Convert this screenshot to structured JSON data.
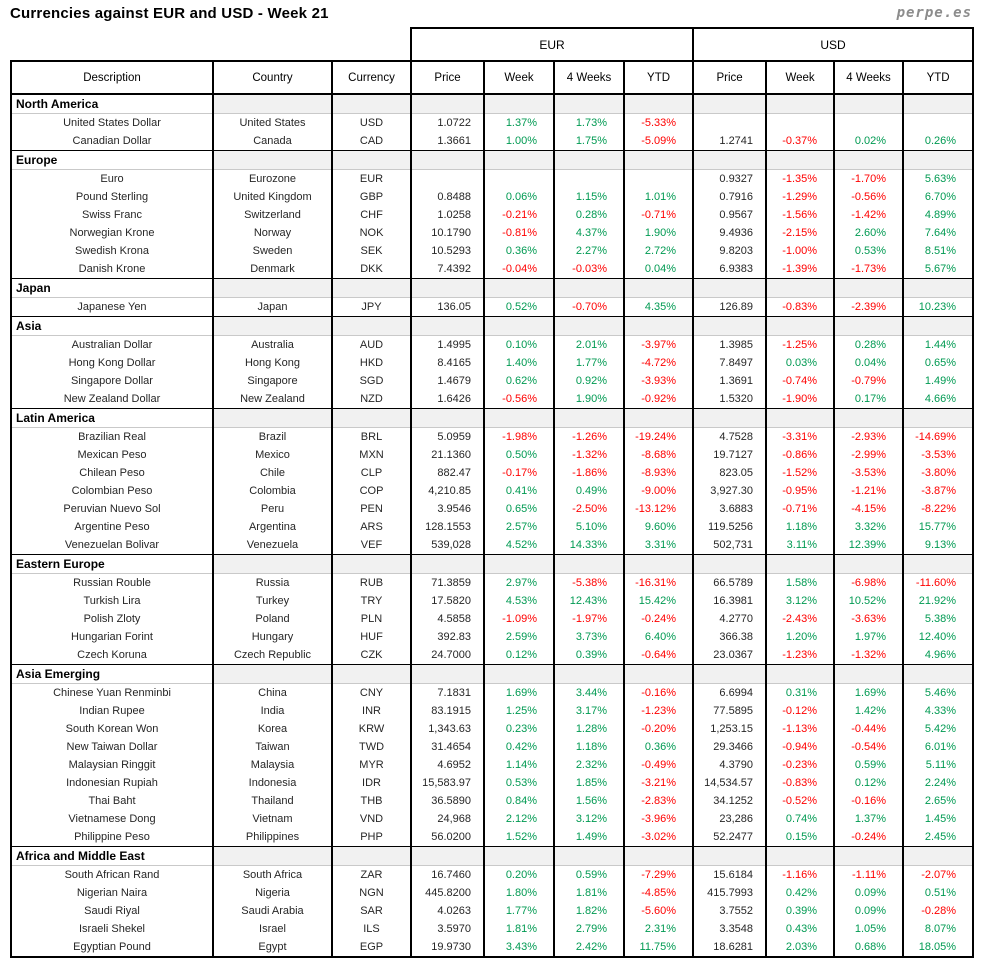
{
  "page": {
    "brand": "perpe.es"
  },
  "colors": {
    "positive": "#009a52",
    "negative": "#ff0000",
    "text": "#262626",
    "border": "#000000",
    "brand": "#8c8c8c",
    "section_fill": "#f1f1f1"
  },
  "chart_data": {
    "type": "table",
    "title": "Currencies against EUR and USD - Week 21",
    "group_headers": [
      {
        "label": "EUR",
        "span": 4
      },
      {
        "label": "USD",
        "span": 4
      }
    ],
    "columns": [
      "Description",
      "Country",
      "Currency",
      "Price",
      "Week",
      "4 Weeks",
      "YTD",
      "Price",
      "Week",
      "4 Weeks",
      "YTD"
    ],
    "sections": [
      {
        "name": "North America",
        "rows": [
          {
            "description": "United States Dollar",
            "country": "United States",
            "code": "USD",
            "eur": [
              "1.0722",
              "1.37%",
              "1.73%",
              "-5.33%"
            ],
            "usd": [
              "",
              "",
              "",
              ""
            ]
          },
          {
            "description": "Canadian Dollar",
            "country": "Canada",
            "code": "CAD",
            "eur": [
              "1.3661",
              "1.00%",
              "1.75%",
              "-5.09%"
            ],
            "usd": [
              "1.2741",
              "-0.37%",
              "0.02%",
              "0.26%"
            ]
          }
        ]
      },
      {
        "name": "Europe",
        "rows": [
          {
            "description": "Euro",
            "country": "Eurozone",
            "code": "EUR",
            "eur": [
              "",
              "",
              "",
              ""
            ],
            "usd": [
              "0.9327",
              "-1.35%",
              "-1.70%",
              "5.63%"
            ]
          },
          {
            "description": "Pound Sterling",
            "country": "United Kingdom",
            "code": "GBP",
            "eur": [
              "0.8488",
              "0.06%",
              "1.15%",
              "1.01%"
            ],
            "usd": [
              "0.7916",
              "-1.29%",
              "-0.56%",
              "6.70%"
            ]
          },
          {
            "description": "Swiss Franc",
            "country": "Switzerland",
            "code": "CHF",
            "eur": [
              "1.0258",
              "-0.21%",
              "0.28%",
              "-0.71%"
            ],
            "usd": [
              "0.9567",
              "-1.56%",
              "-1.42%",
              "4.89%"
            ]
          },
          {
            "description": "Norwegian Krone",
            "country": "Norway",
            "code": "NOK",
            "eur": [
              "10.1790",
              "-0.81%",
              "4.37%",
              "1.90%"
            ],
            "usd": [
              "9.4936",
              "-2.15%",
              "2.60%",
              "7.64%"
            ]
          },
          {
            "description": "Swedish Krona",
            "country": "Sweden",
            "code": "SEK",
            "eur": [
              "10.5293",
              "0.36%",
              "2.27%",
              "2.72%"
            ],
            "usd": [
              "9.8203",
              "-1.00%",
              "0.53%",
              "8.51%"
            ]
          },
          {
            "description": "Danish Krone",
            "country": "Denmark",
            "code": "DKK",
            "eur": [
              "7.4392",
              "-0.04%",
              "-0.03%",
              "0.04%"
            ],
            "usd": [
              "6.9383",
              "-1.39%",
              "-1.73%",
              "5.67%"
            ]
          }
        ]
      },
      {
        "name": "Japan",
        "rows": [
          {
            "description": "Japanese Yen",
            "country": "Japan",
            "code": "JPY",
            "eur": [
              "136.05",
              "0.52%",
              "-0.70%",
              "4.35%"
            ],
            "usd": [
              "126.89",
              "-0.83%",
              "-2.39%",
              "10.23%"
            ]
          }
        ]
      },
      {
        "name": "Asia",
        "rows": [
          {
            "description": "Australian Dollar",
            "country": "Australia",
            "code": "AUD",
            "eur": [
              "1.4995",
              "0.10%",
              "2.01%",
              "-3.97%"
            ],
            "usd": [
              "1.3985",
              "-1.25%",
              "0.28%",
              "1.44%"
            ]
          },
          {
            "description": "Hong Kong Dollar",
            "country": "Hong Kong",
            "code": "HKD",
            "eur": [
              "8.4165",
              "1.40%",
              "1.77%",
              "-4.72%"
            ],
            "usd": [
              "7.8497",
              "0.03%",
              "0.04%",
              "0.65%"
            ]
          },
          {
            "description": "Singapore Dollar",
            "country": "Singapore",
            "code": "SGD",
            "eur": [
              "1.4679",
              "0.62%",
              "0.92%",
              "-3.93%"
            ],
            "usd": [
              "1.3691",
              "-0.74%",
              "-0.79%",
              "1.49%"
            ]
          },
          {
            "description": "New Zealand Dollar",
            "country": "New Zealand",
            "code": "NZD",
            "eur": [
              "1.6426",
              "-0.56%",
              "1.90%",
              "-0.92%"
            ],
            "usd": [
              "1.5320",
              "-1.90%",
              "0.17%",
              "4.66%"
            ]
          }
        ]
      },
      {
        "name": "Latin America",
        "rows": [
          {
            "description": "Brazilian Real",
            "country": "Brazil",
            "code": "BRL",
            "eur": [
              "5.0959",
              "-1.98%",
              "-1.26%",
              "-19.24%"
            ],
            "usd": [
              "4.7528",
              "-3.31%",
              "-2.93%",
              "-14.69%"
            ]
          },
          {
            "description": "Mexican Peso",
            "country": "Mexico",
            "code": "MXN",
            "eur": [
              "21.1360",
              "0.50%",
              "-1.32%",
              "-8.68%"
            ],
            "usd": [
              "19.7127",
              "-0.86%",
              "-2.99%",
              "-3.53%"
            ]
          },
          {
            "description": "Chilean Peso",
            "country": "Chile",
            "code": "CLP",
            "eur": [
              "882.47",
              "-0.17%",
              "-1.86%",
              "-8.93%"
            ],
            "usd": [
              "823.05",
              "-1.52%",
              "-3.53%",
              "-3.80%"
            ]
          },
          {
            "description": "Colombian Peso",
            "country": "Colombia",
            "code": "COP",
            "eur": [
              "4,210.85",
              "0.41%",
              "0.49%",
              "-9.00%"
            ],
            "usd": [
              "3,927.30",
              "-0.95%",
              "-1.21%",
              "-3.87%"
            ]
          },
          {
            "description": "Peruvian Nuevo Sol",
            "country": "Peru",
            "code": "PEN",
            "eur": [
              "3.9546",
              "0.65%",
              "-2.50%",
              "-13.12%"
            ],
            "usd": [
              "3.6883",
              "-0.71%",
              "-4.15%",
              "-8.22%"
            ]
          },
          {
            "description": "Argentine Peso",
            "country": "Argentina",
            "code": "ARS",
            "eur": [
              "128.1553",
              "2.57%",
              "5.10%",
              "9.60%"
            ],
            "usd": [
              "119.5256",
              "1.18%",
              "3.32%",
              "15.77%"
            ]
          },
          {
            "description": "Venezuelan Bolivar",
            "country": "Venezuela",
            "code": "VEF",
            "eur": [
              "539,028",
              "4.52%",
              "14.33%",
              "3.31%"
            ],
            "usd": [
              "502,731",
              "3.11%",
              "12.39%",
              "9.13%"
            ]
          }
        ]
      },
      {
        "name": "Eastern Europe",
        "rows": [
          {
            "description": "Russian Rouble",
            "country": "Russia",
            "code": "RUB",
            "eur": [
              "71.3859",
              "2.97%",
              "-5.38%",
              "-16.31%"
            ],
            "usd": [
              "66.5789",
              "1.58%",
              "-6.98%",
              "-11.60%"
            ]
          },
          {
            "description": "Turkish Lira",
            "country": "Turkey",
            "code": "TRY",
            "eur": [
              "17.5820",
              "4.53%",
              "12.43%",
              "15.42%"
            ],
            "usd": [
              "16.3981",
              "3.12%",
              "10.52%",
              "21.92%"
            ]
          },
          {
            "description": "Polish Zloty",
            "country": "Poland",
            "code": "PLN",
            "eur": [
              "4.5858",
              "-1.09%",
              "-1.97%",
              "-0.24%"
            ],
            "usd": [
              "4.2770",
              "-2.43%",
              "-3.63%",
              "5.38%"
            ]
          },
          {
            "description": "Hungarian Forint",
            "country": "Hungary",
            "code": "HUF",
            "eur": [
              "392.83",
              "2.59%",
              "3.73%",
              "6.40%"
            ],
            "usd": [
              "366.38",
              "1.20%",
              "1.97%",
              "12.40%"
            ]
          },
          {
            "description": "Czech Koruna",
            "country": "Czech Republic",
            "code": "CZK",
            "eur": [
              "24.7000",
              "0.12%",
              "0.39%",
              "-0.64%"
            ],
            "usd": [
              "23.0367",
              "-1.23%",
              "-1.32%",
              "4.96%"
            ]
          }
        ]
      },
      {
        "name": "Asia Emerging",
        "rows": [
          {
            "description": "Chinese Yuan Renminbi",
            "country": "China",
            "code": "CNY",
            "eur": [
              "7.1831",
              "1.69%",
              "3.44%",
              "-0.16%"
            ],
            "usd": [
              "6.6994",
              "0.31%",
              "1.69%",
              "5.46%"
            ]
          },
          {
            "description": "Indian Rupee",
            "country": "India",
            "code": "INR",
            "eur": [
              "83.1915",
              "1.25%",
              "3.17%",
              "-1.23%"
            ],
            "usd": [
              "77.5895",
              "-0.12%",
              "1.42%",
              "4.33%"
            ]
          },
          {
            "description": "South Korean Won",
            "country": "Korea",
            "code": "KRW",
            "eur": [
              "1,343.63",
              "0.23%",
              "1.28%",
              "-0.20%"
            ],
            "usd": [
              "1,253.15",
              "-1.13%",
              "-0.44%",
              "5.42%"
            ]
          },
          {
            "description": "New Taiwan Dollar",
            "country": "Taiwan",
            "code": "TWD",
            "eur": [
              "31.4654",
              "0.42%",
              "1.18%",
              "0.36%"
            ],
            "usd": [
              "29.3466",
              "-0.94%",
              "-0.54%",
              "6.01%"
            ]
          },
          {
            "description": "Malaysian Ringgit",
            "country": "Malaysia",
            "code": "MYR",
            "eur": [
              "4.6952",
              "1.14%",
              "2.32%",
              "-0.49%"
            ],
            "usd": [
              "4.3790",
              "-0.23%",
              "0.59%",
              "5.11%"
            ]
          },
          {
            "description": "Indonesian Rupiah",
            "country": "Indonesia",
            "code": "IDR",
            "eur": [
              "15,583.97",
              "0.53%",
              "1.85%",
              "-3.21%"
            ],
            "usd": [
              "14,534.57",
              "-0.83%",
              "0.12%",
              "2.24%"
            ]
          },
          {
            "description": "Thai Baht",
            "country": "Thailand",
            "code": "THB",
            "eur": [
              "36.5890",
              "0.84%",
              "1.56%",
              "-2.83%"
            ],
            "usd": [
              "34.1252",
              "-0.52%",
              "-0.16%",
              "2.65%"
            ]
          },
          {
            "description": "Vietnamese Dong",
            "country": "Vietnam",
            "code": "VND",
            "eur": [
              "24,968",
              "2.12%",
              "3.12%",
              "-3.96%"
            ],
            "usd": [
              "23,286",
              "0.74%",
              "1.37%",
              "1.45%"
            ]
          },
          {
            "description": "Philippine Peso",
            "country": "Philippines",
            "code": "PHP",
            "eur": [
              "56.0200",
              "1.52%",
              "1.49%",
              "-3.02%"
            ],
            "usd": [
              "52.2477",
              "0.15%",
              "-0.24%",
              "2.45%"
            ]
          }
        ]
      },
      {
        "name": "Africa and Middle East",
        "rows": [
          {
            "description": "South African Rand",
            "country": "South Africa",
            "code": "ZAR",
            "eur": [
              "16.7460",
              "0.20%",
              "0.59%",
              "-7.29%"
            ],
            "usd": [
              "15.6184",
              "-1.16%",
              "-1.11%",
              "-2.07%"
            ]
          },
          {
            "description": "Nigerian Naira",
            "country": "Nigeria",
            "code": "NGN",
            "eur": [
              "445.8200",
              "1.80%",
              "1.81%",
              "-4.85%"
            ],
            "usd": [
              "415.7993",
              "0.42%",
              "0.09%",
              "0.51%"
            ]
          },
          {
            "description": "Saudi Riyal",
            "country": "Saudi Arabia",
            "code": "SAR",
            "eur": [
              "4.0263",
              "1.77%",
              "1.82%",
              "-5.60%"
            ],
            "usd": [
              "3.7552",
              "0.39%",
              "0.09%",
              "-0.28%"
            ]
          },
          {
            "description": "Israeli Shekel",
            "country": "Israel",
            "code": "ILS",
            "eur": [
              "3.5970",
              "1.81%",
              "2.79%",
              "2.31%"
            ],
            "usd": [
              "3.3548",
              "0.43%",
              "1.05%",
              "8.07%"
            ]
          },
          {
            "description": "Egyptian Pound",
            "country": "Egypt",
            "code": "EGP",
            "eur": [
              "19.9730",
              "3.43%",
              "2.42%",
              "11.75%"
            ],
            "usd": [
              "18.6281",
              "2.03%",
              "0.68%",
              "18.05%"
            ]
          }
        ]
      }
    ]
  }
}
